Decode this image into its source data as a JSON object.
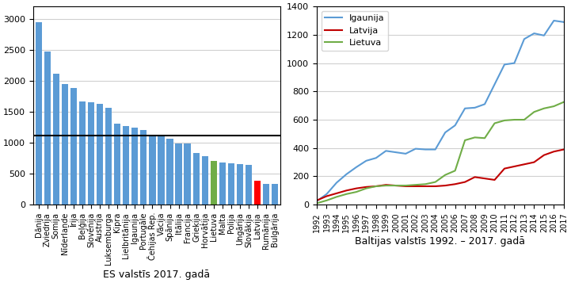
{
  "chart_data": [
    {
      "type": "bar",
      "xlabel": "ES valstīs 2017. gadā",
      "categories": [
        "Dānija",
        "Zviedrija",
        "Somija",
        "Nīderlande",
        "Īrija",
        "Beļģija",
        "Slovēnija",
        "Austrija",
        "Luksemburga",
        "Kipra",
        "Lielbritānija",
        "Igaunija",
        "Portugāle",
        "Čehijas Rep.",
        "Vācija",
        "Spānija",
        "Itālija",
        "Francija",
        "Grieķija",
        "Horvātija",
        "Lietuva",
        "Malta",
        "Polija",
        "Ungārija",
        "Slovākija",
        "Latvija",
        "Rumānija",
        "Bulgārija"
      ],
      "values": [
        2950,
        2470,
        2110,
        1950,
        1880,
        1670,
        1650,
        1630,
        1570,
        1310,
        1270,
        1250,
        1200,
        1110,
        1110,
        1060,
        990,
        990,
        830,
        780,
        710,
        680,
        670,
        650,
        640,
        390,
        340,
        335
      ],
      "colors": [
        "#5b9bd5",
        "#5b9bd5",
        "#5b9bd5",
        "#5b9bd5",
        "#5b9bd5",
        "#5b9bd5",
        "#5b9bd5",
        "#5b9bd5",
        "#5b9bd5",
        "#5b9bd5",
        "#5b9bd5",
        "#5b9bd5",
        "#5b9bd5",
        "#5b9bd5",
        "#5b9bd5",
        "#5b9bd5",
        "#5b9bd5",
        "#5b9bd5",
        "#5b9bd5",
        "#5b9bd5",
        "#70ad47",
        "#5b9bd5",
        "#5b9bd5",
        "#5b9bd5",
        "#5b9bd5",
        "#ff0000",
        "#5b9bd5",
        "#5b9bd5"
      ],
      "reference_line": {
        "value": 1120,
        "color": "#000000"
      },
      "ylim": [
        0,
        3200
      ],
      "yticks": [
        0,
        500,
        1000,
        1500,
        2000,
        2500,
        3000
      ],
      "grid": true
    },
    {
      "type": "line",
      "xlabel": "Baltijas valstīs 1992. – 2017. gadā",
      "x": [
        1992,
        1993,
        1994,
        1995,
        1996,
        1997,
        1998,
        1999,
        2000,
        2001,
        2002,
        2003,
        2004,
        2005,
        2006,
        2007,
        2008,
        2009,
        2010,
        2011,
        2012,
        2013,
        2014,
        2015,
        2016,
        2017
      ],
      "series": [
        {
          "name": "Igaunija",
          "color": "#5b9bd5",
          "values": [
            25,
            75,
            155,
            215,
            265,
            310,
            330,
            380,
            370,
            360,
            395,
            390,
            390,
            510,
            560,
            680,
            685,
            710,
            850,
            990,
            1000,
            1170,
            1210,
            1195,
            1300,
            1290
          ]
        },
        {
          "name": "Latvija",
          "color": "#c00000",
          "values": [
            30,
            60,
            80,
            100,
            115,
            125,
            130,
            140,
            135,
            130,
            130,
            130,
            130,
            135,
            145,
            160,
            195,
            185,
            175,
            255,
            270,
            285,
            300,
            350,
            375,
            390
          ]
        },
        {
          "name": "Lietuva",
          "color": "#70ad47",
          "values": [
            10,
            30,
            55,
            75,
            90,
            115,
            130,
            135,
            135,
            135,
            140,
            145,
            160,
            210,
            240,
            455,
            475,
            470,
            575,
            595,
            600,
            600,
            655,
            680,
            695,
            725
          ]
        }
      ],
      "xlim": [
        1992,
        2017
      ],
      "xticks": [
        1992,
        1993,
        1994,
        1995,
        1996,
        1997,
        1998,
        1999,
        2000,
        2001,
        2002,
        2003,
        2004,
        2005,
        2006,
        2007,
        2008,
        2009,
        2010,
        2011,
        2012,
        2013,
        2014,
        2015,
        2016,
        2017
      ],
      "ylim": [
        0,
        1400
      ],
      "yticks": [
        0,
        200,
        400,
        600,
        800,
        1000,
        1200,
        1400
      ],
      "grid": true,
      "legend": "upper left"
    }
  ]
}
